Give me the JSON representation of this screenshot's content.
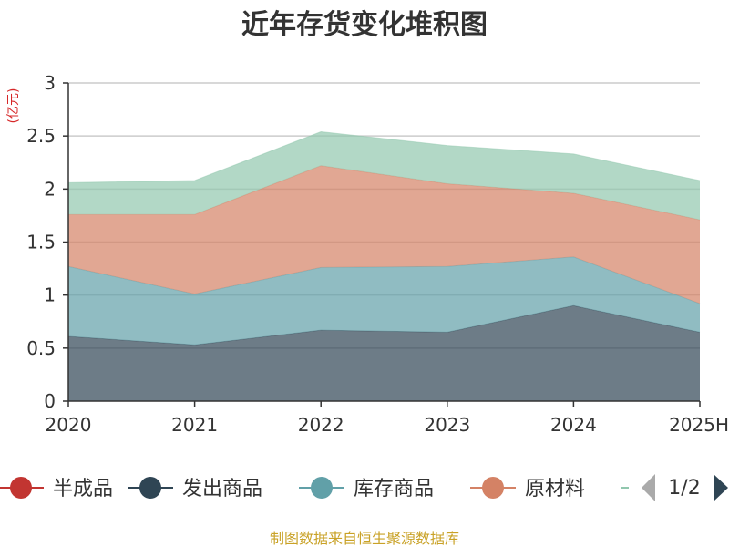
{
  "chart_data": {
    "type": "area",
    "stacked": true,
    "title": "近年存货变化堆积图",
    "unit_label": "(亿元)",
    "categories": [
      "2020",
      "2021",
      "2022",
      "2023",
      "2024",
      "2025H"
    ],
    "ylim": [
      0,
      3
    ],
    "yticks": [
      0,
      0.5,
      1,
      1.5,
      2,
      2.5,
      3
    ],
    "ytick_labels": [
      "0",
      "0.5",
      "1",
      "1.5",
      "2",
      "2.5",
      "3"
    ],
    "grid": true,
    "legend_position": "bottom",
    "series": [
      {
        "name": "半成品",
        "color": "#c23531",
        "values": [
          0,
          0,
          0,
          0,
          0,
          0
        ]
      },
      {
        "name": "发出商品",
        "color": "#2f4554",
        "values": [
          0.61,
          0.53,
          0.67,
          0.65,
          0.9,
          0.65
        ]
      },
      {
        "name": "库存商品",
        "color": "#61a0a8",
        "values": [
          0.66,
          0.48,
          0.59,
          0.62,
          0.46,
          0.27
        ]
      },
      {
        "name": "原材料",
        "color": "#d48265",
        "values": [
          0.49,
          0.75,
          0.96,
          0.78,
          0.6,
          0.79
        ]
      },
      {
        "name": "",
        "color": "#91c7ae",
        "values": [
          0.3,
          0.32,
          0.32,
          0.36,
          0.37,
          0.37
        ]
      }
    ]
  },
  "legend": {
    "items": [
      {
        "label": "半成品",
        "color": "#c23531"
      },
      {
        "label": "发出商品",
        "color": "#2f4554"
      },
      {
        "label": "库存商品",
        "color": "#61a0a8"
      },
      {
        "label": "原材料",
        "color": "#d48265"
      },
      {
        "label": "",
        "color": "#91c7ae"
      }
    ],
    "page_text": "1/2",
    "prev_icon": "triangle-left-icon",
    "next_icon": "triangle-right-icon"
  },
  "source_text": "制图数据来自恒生聚源数据库"
}
